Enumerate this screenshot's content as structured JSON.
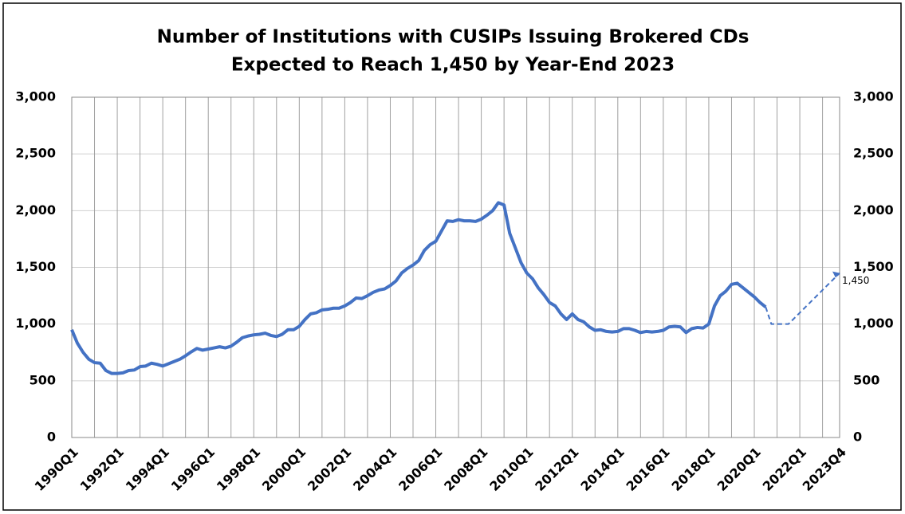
{
  "chart_data": {
    "type": "line",
    "title": [
      "Number of Institutions with CUSIPs Issuing Brokered CDs",
      "Expected to Reach 1,450 by Year-End 2023"
    ],
    "categories": [
      "1990Q1",
      null,
      null,
      null,
      null,
      null,
      null,
      null,
      "1992Q1",
      null,
      null,
      null,
      null,
      null,
      null,
      null,
      "1994Q1",
      null,
      null,
      null,
      null,
      null,
      null,
      null,
      "1996Q1",
      null,
      null,
      null,
      null,
      null,
      null,
      null,
      "1998Q1",
      null,
      null,
      null,
      null,
      null,
      null,
      null,
      "2000Q1",
      null,
      null,
      null,
      null,
      null,
      null,
      null,
      "2002Q1",
      null,
      null,
      null,
      null,
      null,
      null,
      null,
      "2004Q1",
      null,
      null,
      null,
      null,
      null,
      null,
      null,
      "2006Q1",
      null,
      null,
      null,
      null,
      null,
      null,
      null,
      "2008Q1",
      null,
      null,
      null,
      null,
      null,
      null,
      null,
      "2010Q1",
      null,
      null,
      null,
      null,
      null,
      null,
      null,
      "2012Q1",
      null,
      null,
      null,
      null,
      null,
      null,
      null,
      "2014Q1",
      null,
      null,
      null,
      null,
      null,
      null,
      null,
      "2016Q1",
      null,
      null,
      null,
      null,
      null,
      null,
      null,
      "2018Q1",
      null,
      null,
      null,
      null,
      null,
      null,
      null,
      "2020Q1",
      null,
      null,
      null,
      null,
      null,
      null,
      null,
      "2022Q1",
      null,
      null,
      null,
      null,
      null,
      null,
      "2023Q4"
    ],
    "series": [
      {
        "color": "#4472c4",
        "dashed": false,
        "values": [
          950,
          830,
          750,
          690,
          660,
          655,
          590,
          565,
          565,
          570,
          590,
          595,
          625,
          630,
          655,
          645,
          630,
          650,
          670,
          690,
          720,
          755,
          785,
          770,
          780,
          790,
          800,
          790,
          805,
          840,
          880,
          895,
          905,
          910,
          920,
          900,
          890,
          910,
          950,
          950,
          980,
          1040,
          1090,
          1100,
          1125,
          1130,
          1140,
          1140,
          1160,
          1190,
          1230,
          1225,
          1250,
          1280,
          1300,
          1310,
          1340,
          1380,
          1450,
          1490,
          1520,
          1560,
          1650,
          1700,
          1730,
          1820,
          1910,
          1905,
          1920,
          1910,
          1910,
          1905,
          1925,
          1960,
          2000,
          2070,
          2050,
          1800,
          1670,
          1540,
          1450,
          1400,
          1320,
          1260,
          1190,
          1160,
          1090,
          1040,
          1090,
          1040,
          1020,
          975,
          945,
          950,
          935,
          930,
          935,
          960,
          960,
          945,
          925,
          935,
          930,
          935,
          945,
          975,
          980,
          975,
          925,
          960,
          970,
          965,
          1000,
          1160,
          1250,
          1290,
          1350,
          1360,
          1320,
          1280,
          1240,
          1190,
          1150,
          null,
          null,
          null,
          null,
          null,
          null,
          null,
          null,
          null,
          null,
          null,
          null,
          null
        ]
      },
      {
        "color": "#4472c4",
        "dashed": true,
        "values": [
          null,
          null,
          null,
          null,
          null,
          null,
          null,
          null,
          null,
          null,
          null,
          null,
          null,
          null,
          null,
          null,
          null,
          null,
          null,
          null,
          null,
          null,
          null,
          null,
          null,
          null,
          null,
          null,
          null,
          null,
          null,
          null,
          null,
          null,
          null,
          null,
          null,
          null,
          null,
          null,
          null,
          null,
          null,
          null,
          null,
          null,
          null,
          null,
          null,
          null,
          null,
          null,
          null,
          null,
          null,
          null,
          null,
          null,
          null,
          null,
          null,
          null,
          null,
          null,
          null,
          null,
          null,
          null,
          null,
          null,
          null,
          null,
          null,
          null,
          null,
          null,
          null,
          null,
          null,
          null,
          null,
          null,
          null,
          null,
          null,
          null,
          null,
          null,
          null,
          null,
          null,
          null,
          null,
          null,
          null,
          null,
          null,
          null,
          null,
          null,
          null,
          null,
          null,
          null,
          null,
          null,
          null,
          null,
          null,
          null,
          null,
          null,
          null,
          null,
          null,
          null,
          null,
          null,
          null,
          null,
          null,
          null,
          1150,
          1000,
          1000,
          1000,
          1000,
          1050,
          1100,
          1150,
          1200,
          1250,
          1300,
          1350,
          1400,
          1450
        ],
        "value_labels": [
          null,
          null,
          null,
          null,
          null,
          null,
          null,
          null,
          null,
          null,
          null,
          null,
          null,
          null,
          null,
          null,
          null,
          null,
          null,
          null,
          null,
          null,
          null,
          null,
          null,
          null,
          null,
          null,
          null,
          null,
          null,
          null,
          null,
          null,
          null,
          null,
          null,
          null,
          null,
          null,
          null,
          null,
          null,
          null,
          null,
          null,
          null,
          null,
          null,
          null,
          null,
          null,
          null,
          null,
          null,
          null,
          null,
          null,
          null,
          null,
          null,
          null,
          null,
          null,
          null,
          null,
          null,
          null,
          null,
          null,
          null,
          null,
          null,
          null,
          null,
          null,
          null,
          null,
          null,
          null,
          null,
          null,
          null,
          null,
          null,
          null,
          null,
          null,
          null,
          null,
          null,
          null,
          null,
          null,
          null,
          null,
          null,
          null,
          null,
          null,
          null,
          null,
          null,
          null,
          null,
          null,
          null,
          null,
          null,
          null,
          null,
          null,
          null,
          null,
          null,
          null,
          null,
          null,
          null,
          null,
          null,
          null,
          null,
          null,
          null,
          null,
          null,
          null,
          null,
          null,
          null,
          null,
          null,
          null,
          null,
          "1,450"
        ]
      }
    ],
    "ylim": [
      0,
      3000
    ],
    "yticks": [
      0,
      500,
      {
        "value": 1000,
        "label": "1,000"
      },
      {
        "value": 1500,
        "label": "1,500"
      },
      {
        "value": 2000,
        "label": "2,000"
      },
      {
        "value": 2500,
        "label": "2,500"
      },
      {
        "value": 3000,
        "label": "3,000"
      }
    ],
    "y2lim": [
      0,
      3000
    ],
    "y2ticks": [
      0,
      500,
      {
        "value": 1000,
        "label": "1,000"
      },
      {
        "value": 1500,
        "label": "1,500"
      },
      {
        "value": 2000,
        "label": "2,000"
      },
      {
        "value": 2500,
        "label": "2,500"
      },
      {
        "value": 3000,
        "label": "3,000"
      }
    ],
    "grid": true
  }
}
